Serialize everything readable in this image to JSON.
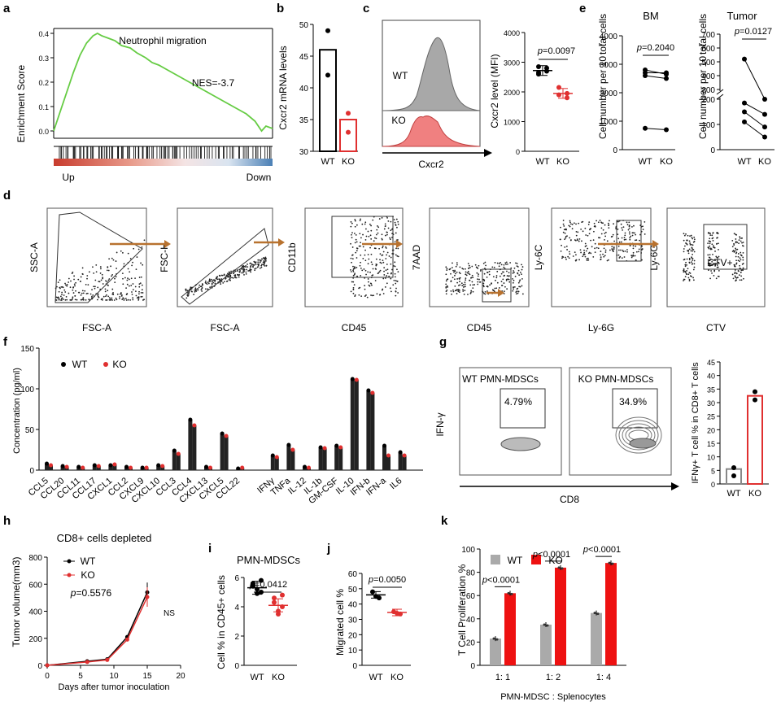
{
  "panels": {
    "a": "a",
    "b": "b",
    "c": "c",
    "d": "d",
    "e": "e",
    "f": "f",
    "g": "g",
    "h": "h",
    "i": "i",
    "j": "j",
    "k": "k"
  },
  "chart_data": [
    {
      "id": "a",
      "type": "line",
      "title": "Neutrophil migration",
      "annotation": "NES=-3.7",
      "ylabel": "Enrichment Score",
      "yticks": [
        "0.4",
        "0.3",
        "0.2",
        "0.1",
        "0.0"
      ],
      "ylim": [
        -0.03,
        0.42
      ],
      "x": [
        0,
        3,
        6,
        9,
        12,
        15,
        18,
        20,
        22,
        25,
        28,
        31,
        35,
        38,
        42,
        45,
        48,
        52,
        56,
        60,
        64,
        68,
        72,
        76,
        80,
        84,
        88,
        92,
        95,
        97,
        100
      ],
      "y": [
        0.0,
        0.08,
        0.16,
        0.24,
        0.31,
        0.36,
        0.39,
        0.4,
        0.39,
        0.38,
        0.37,
        0.35,
        0.34,
        0.32,
        0.3,
        0.28,
        0.27,
        0.25,
        0.23,
        0.21,
        0.19,
        0.17,
        0.15,
        0.13,
        0.11,
        0.09,
        0.07,
        0.04,
        0.0,
        0.02,
        0.01
      ],
      "color": "#66cc44",
      "left_label": "Up",
      "right_label": "Down"
    },
    {
      "id": "b",
      "type": "bar",
      "ylabel": "Cxcr2 mRNA levels",
      "categories": [
        "WT",
        "KO"
      ],
      "values": [
        46,
        35
      ],
      "points": [
        [
          49,
          42
        ],
        [
          36,
          33
        ]
      ],
      "yticks": [
        "30",
        "35",
        "40",
        "45",
        "50"
      ],
      "ylim": [
        30,
        50
      ],
      "colors": [
        "#000000",
        "#e03030"
      ]
    },
    {
      "id": "c",
      "type": "scatter",
      "flow_labels": {
        "wt": "WT",
        "ko": "KO",
        "xlabel": "Cxcr2"
      },
      "ylabel": "Cxcr2 level (MFI)",
      "categories": [
        "WT",
        "KO"
      ],
      "means": [
        2720,
        1950
      ],
      "points": [
        [
          2850,
          2700,
          2600,
          2800,
          2650
        ],
        [
          2150,
          1800,
          1900,
          1950
        ]
      ],
      "pvalue": "p=0.0097",
      "yticks": [
        "0",
        "1000",
        "2000",
        "3000",
        "4000"
      ],
      "ylim": [
        0,
        4000
      ]
    },
    {
      "id": "e-bm",
      "type": "line",
      "title": "BM",
      "ylabel": "Cell number per 10^7 total cells",
      "categories": [
        "WT",
        "KO"
      ],
      "pairs": [
        [
          2800,
          2650
        ],
        [
          2700,
          2700
        ],
        [
          2600,
          2500
        ],
        [
          750,
          700
        ]
      ],
      "pvalue": "p=0.2040",
      "yticks": [
        "0",
        "1000",
        "2000",
        "3000",
        "4000"
      ],
      "ylim": [
        0,
        4000
      ]
    },
    {
      "id": "e-tumor",
      "type": "line",
      "title": "Tumor",
      "ylabel": "Cell number per 10^7 total cells",
      "categories": [
        "WT",
        "KO"
      ],
      "pairs": [
        [
          520,
          270
        ],
        [
          185,
          140
        ],
        [
          150,
          90
        ],
        [
          110,
          50
        ]
      ],
      "pvalue": "p=0.0127",
      "yticks_upper": [
        "300",
        "400",
        "500",
        "600",
        "700"
      ],
      "yticks_lower": [
        "0",
        "100",
        "200"
      ],
      "ylim": [
        0,
        700
      ]
    },
    {
      "id": "d",
      "type": "table",
      "plots": [
        {
          "ylabel": "SSC-A",
          "xlabel": "FSC-A"
        },
        {
          "ylabel": "FSC-H",
          "xlabel": "FSC-A"
        },
        {
          "ylabel": "CD11b",
          "xlabel": "CD45"
        },
        {
          "ylabel": "7AAD",
          "xlabel": "CD45"
        },
        {
          "ylabel": "Ly-6C",
          "xlabel": "Ly-6G"
        },
        {
          "ylabel": "Ly-6G",
          "xlabel": "CTV",
          "gate_label": "CTV+"
        }
      ]
    },
    {
      "id": "f",
      "type": "bar",
      "ylabel": "Concentration (pg/ml)",
      "legend": [
        "WT",
        "KO"
      ],
      "yticks": [
        "0",
        "50",
        "100",
        "150"
      ],
      "ylim": [
        0,
        150
      ],
      "categories": [
        "CCL5",
        "CCL20",
        "CCL11",
        "CCL17",
        "CXCL1",
        "CCL2",
        "CXCL9",
        "CXCL10",
        "CCL3",
        "CCL4",
        "CXCL13",
        "CXCL5",
        "CCL22",
        "IFNγ",
        "TNFa",
        "IL-12",
        "IL-1b",
        "GM-CSF",
        "IL-10",
        "IFN-b",
        "IFN-a",
        "IL6"
      ],
      "series": [
        {
          "name": "WT",
          "values": [
            8,
            5,
            4,
            6,
            6,
            4,
            3,
            6,
            24,
            62,
            4,
            45,
            2,
            18,
            31,
            4,
            28,
            30,
            112,
            98,
            30,
            22
          ]
        },
        {
          "name": "KO",
          "values": [
            6,
            4,
            3,
            5,
            7,
            3,
            3,
            5,
            20,
            55,
            3,
            42,
            3,
            16,
            25,
            3,
            27,
            28,
            111,
            95,
            18,
            18
          ]
        }
      ]
    },
    {
      "id": "g",
      "type": "bar",
      "flow_labels": {
        "wt": "WT  PMN-MDSCs",
        "ko": "KO PMN-MDSCs",
        "wt_pct": "4.79%",
        "ko_pct": "34.9%",
        "ylabel": "IFN-γ",
        "xlabel": "CD8"
      },
      "ylabel": "IFNγ+ T cell % in CD8+ T cells",
      "categories": [
        "WT",
        "KO"
      ],
      "values": [
        5.5,
        32.5
      ],
      "points": [
        [
          6,
          3
        ],
        [
          34,
          31
        ]
      ],
      "yticks": [
        "0",
        "5",
        "10",
        "15",
        "20",
        "25",
        "30",
        "35",
        "40",
        "45"
      ],
      "ylim": [
        0,
        45
      ],
      "colors": [
        "#000000",
        "#e03030"
      ]
    },
    {
      "id": "h",
      "type": "line",
      "title": "CD8+ cells depleted",
      "xlabel": "Days after tumor inoculation",
      "ylabel": "Tumor volume(mm3)",
      "pvalue": "p=0.5576",
      "ns": "NS",
      "x": [
        0,
        6,
        9,
        12,
        15
      ],
      "xticks": [
        "0",
        "5",
        "10",
        "15",
        "20"
      ],
      "yticks": [
        "0",
        "200",
        "400",
        "600",
        "800"
      ],
      "ylim": [
        0,
        800
      ],
      "series": [
        {
          "name": "WT",
          "values": [
            0,
            30,
            45,
            210,
            540
          ]
        },
        {
          "name": "KO",
          "values": [
            0,
            25,
            40,
            190,
            505
          ]
        }
      ]
    },
    {
      "id": "i",
      "type": "scatter",
      "title": "PMN-MDSCs",
      "ylabel": "Cell % in CD45+ cells",
      "categories": [
        "WT",
        "KO"
      ],
      "means": [
        5.3,
        4.1
      ],
      "points": [
        [
          5.6,
          5.2,
          5.0,
          5.4,
          4.9,
          5.8,
          5.5
        ],
        [
          4.6,
          3.5,
          4.0,
          4.3,
          3.7,
          4.8
        ]
      ],
      "pvalue": "p=0.0412",
      "yticks": [
        "0",
        "2",
        "4",
        "6"
      ],
      "ylim": [
        0,
        6
      ]
    },
    {
      "id": "j",
      "type": "scatter",
      "ylabel": "Migrated cell %",
      "categories": [
        "WT",
        "KO"
      ],
      "means": [
        46,
        34.5
      ],
      "points": [
        [
          48,
          45,
          44
        ],
        [
          35,
          34,
          33.5
        ]
      ],
      "pvalue": "p=0.0050",
      "yticks": [
        "0",
        "10",
        "20",
        "30",
        "40",
        "50",
        "60"
      ],
      "ylim": [
        0,
        60
      ]
    },
    {
      "id": "k",
      "type": "bar",
      "xlabel": "PMN-MDSC : Splenocytes",
      "ylabel": "T Cell Proliferation %",
      "categories": [
        "1: 1",
        "1: 2",
        "1: 4"
      ],
      "yticks": [
        "0",
        "20",
        "40",
        "60",
        "80",
        "100"
      ],
      "ylim": [
        0,
        100
      ],
      "pvalues": [
        "p<0.0001",
        "p<0.0001",
        "p<0.0001"
      ],
      "series": [
        {
          "name": "WT",
          "values": [
            23,
            35,
            45
          ]
        },
        {
          "name": "KO",
          "values": [
            62,
            84,
            88
          ]
        }
      ],
      "colors": [
        "#aaaaaa",
        "#ee1111"
      ]
    }
  ]
}
